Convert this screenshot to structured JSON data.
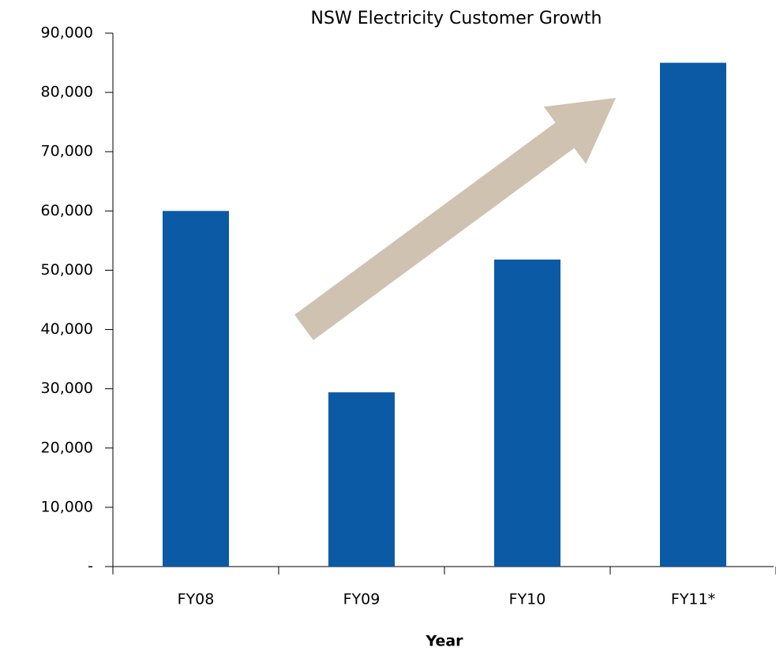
{
  "chart_data": {
    "type": "bar",
    "title": "NSW Electricity Customer Growth",
    "x_label": "Year",
    "categories": [
      "FY08",
      "FY09",
      "FY10",
      "FY11*"
    ],
    "values": [
      60000,
      29400,
      51800,
      85000
    ],
    "color": "#0b5aa5",
    "ylim": [
      0,
      90000
    ],
    "yticks": [
      {
        "value": 0,
        "label": "-"
      },
      {
        "value": 10000,
        "label": "10,000"
      },
      {
        "value": 20000,
        "label": "20,000"
      },
      {
        "value": 30000,
        "label": "30,000"
      },
      {
        "value": 40000,
        "label": "40,000"
      },
      {
        "value": 50000,
        "label": "50,000"
      },
      {
        "value": 60000,
        "label": "60,000"
      },
      {
        "value": 70000,
        "label": "70,000"
      },
      {
        "value": 80000,
        "label": "80,000"
      },
      {
        "value": 90000,
        "label": "90,000"
      }
    ],
    "grid": false
  }
}
